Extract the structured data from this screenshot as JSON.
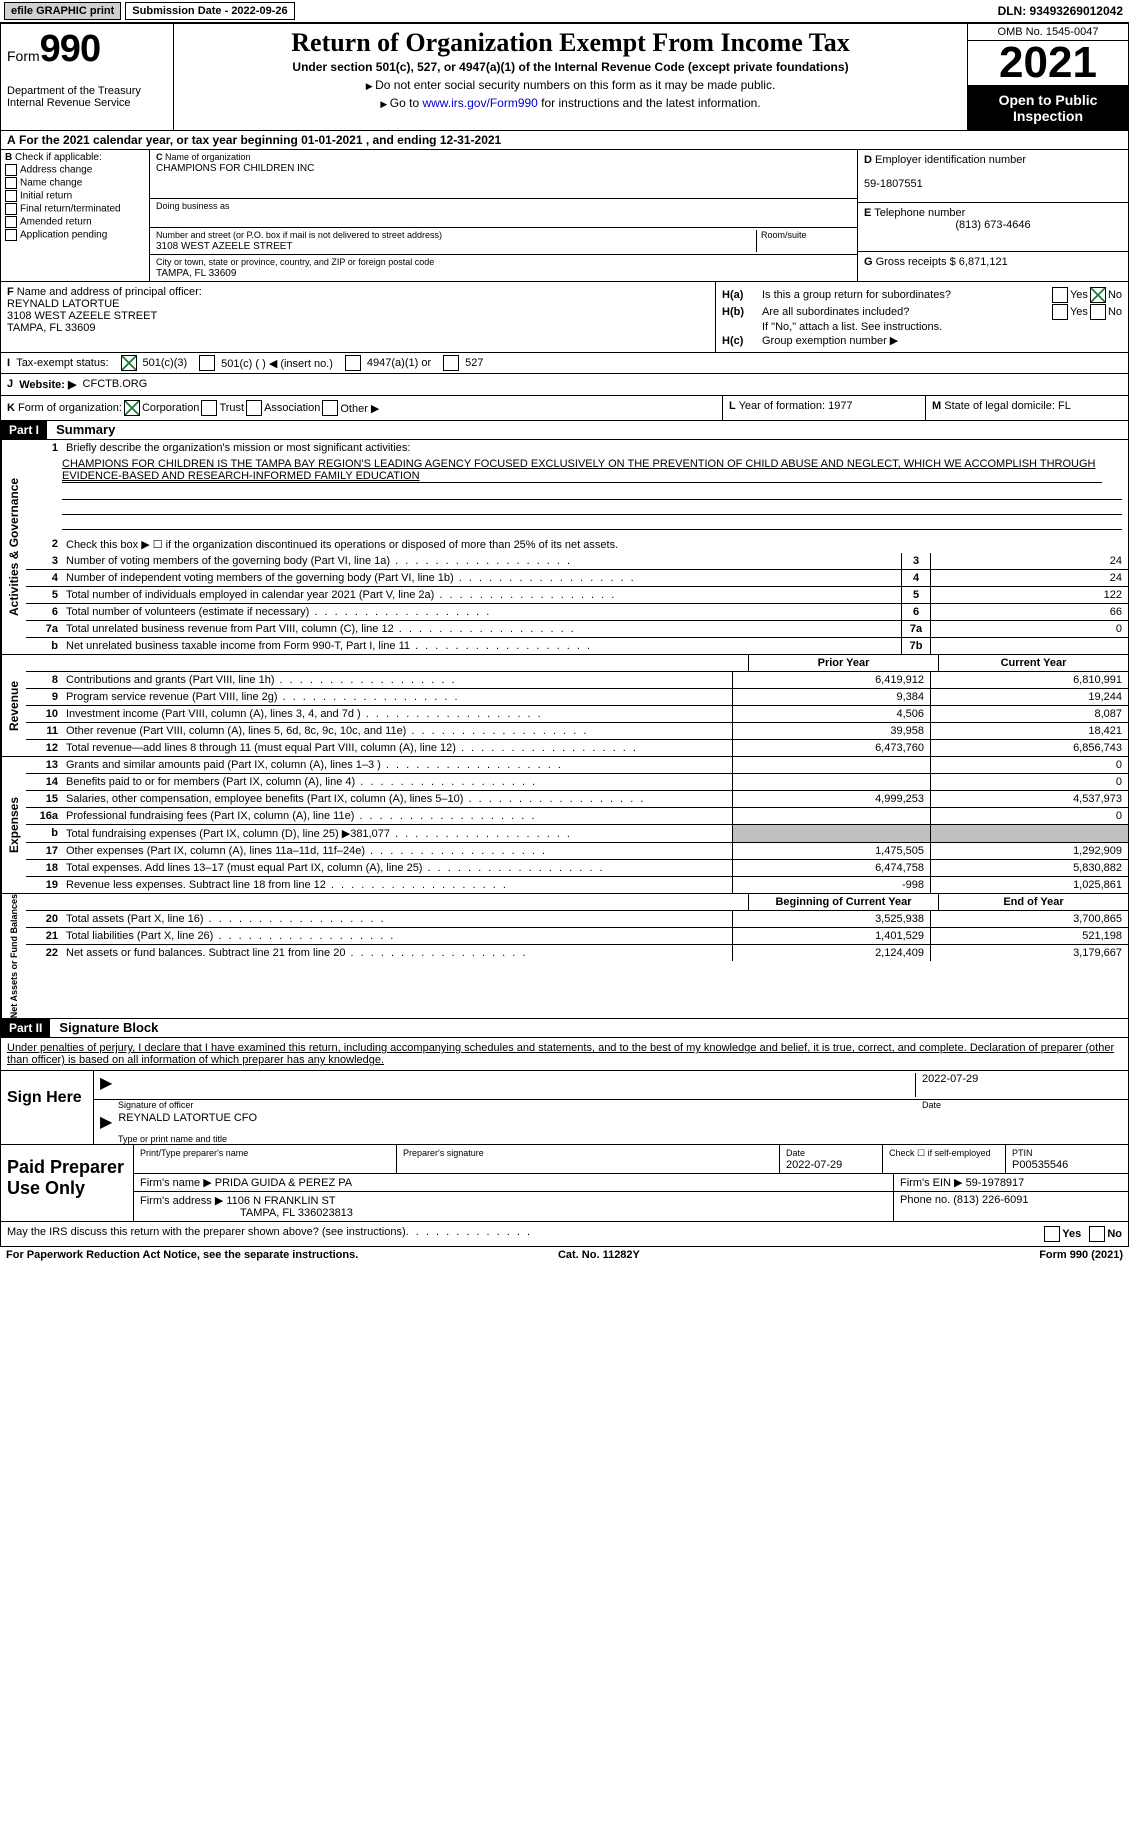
{
  "topbar": {
    "efile": "efile GRAPHIC print",
    "submission_label": "Submission Date - 2022-09-26",
    "dln": "DLN: 93493269012042"
  },
  "header": {
    "form_label": "Form",
    "form_num": "990",
    "dept": "Department of the Treasury",
    "irs": "Internal Revenue Service",
    "title": "Return of Organization Exempt From Income Tax",
    "sub1": "Under section 501(c), 527, or 4947(a)(1) of the Internal Revenue Code (except private foundations)",
    "sub2": "Do not enter social security numbers on this form as it may be made public.",
    "sub3_pre": "Go to ",
    "sub3_link": "www.irs.gov/Form990",
    "sub3_post": " for instructions and the latest information.",
    "omb": "OMB No. 1545-0047",
    "year": "2021",
    "open": "Open to Public Inspection"
  },
  "A": "For the 2021 calendar year, or tax year beginning 01-01-2021   , and ending 12-31-2021",
  "B": {
    "label": "Check if applicable:",
    "items": [
      "Address change",
      "Name change",
      "Initial return",
      "Final return/terminated",
      "Amended return",
      "Application pending"
    ],
    "letter": "B"
  },
  "C": {
    "name_label": "Name of organization",
    "name": "CHAMPIONS FOR CHILDREN INC",
    "dba_label": "Doing business as",
    "street_label": "Number and street (or P.O. box if mail is not delivered to street address)",
    "room_label": "Room/suite",
    "street": "3108 WEST AZEELE STREET",
    "city_label": "City or town, state or province, country, and ZIP or foreign postal code",
    "city": "TAMPA, FL  33609",
    "letter": "C"
  },
  "D": {
    "label": "Employer identification number",
    "val": "59-1807551",
    "letter": "D"
  },
  "E": {
    "label": "Telephone number",
    "val": "(813) 673-4646",
    "letter": "E"
  },
  "G": {
    "label": "Gross receipts $",
    "val": "6,871,121",
    "letter": "G"
  },
  "F": {
    "label": "Name and address of principal officer:",
    "name": "REYNALD LATORTUE",
    "addr1": "3108 WEST AZEELE STREET",
    "addr2": "TAMPA, FL  33609",
    "letter": "F"
  },
  "H": {
    "a": "Is this a group return for subordinates?",
    "b": "Are all subordinates included?",
    "b_note": "If \"No,\" attach a list. See instructions.",
    "c": "Group exemption number ▶",
    "yes": "Yes",
    "no": "No"
  },
  "I": {
    "label": "Tax-exempt status:",
    "opts": [
      "501(c)(3)",
      "501(c) (  ) ◀ (insert no.)",
      "4947(a)(1) or",
      "527"
    ]
  },
  "J": {
    "label": "Website: ▶",
    "val": "CFCTB.ORG"
  },
  "K": {
    "label": "Form of organization:",
    "opts": [
      "Corporation",
      "Trust",
      "Association",
      "Other ▶"
    ]
  },
  "L": {
    "label": "Year of formation:",
    "val": "1977"
  },
  "M": {
    "label": "State of legal domicile:",
    "val": "FL"
  },
  "part1": {
    "part": "Part I",
    "title": "Summary",
    "vtabs": [
      "Activities & Governance",
      "Revenue",
      "Expenses",
      "Net Assets or Fund Balances"
    ],
    "l1_label": "Briefly describe the organization's mission or most significant activities:",
    "l1_text": "CHAMPIONS FOR CHILDREN IS THE TAMPA BAY REGION'S LEADING AGENCY FOCUSED EXCLUSIVELY ON THE PREVENTION OF CHILD ABUSE AND NEGLECT, WHICH WE ACCOMPLISH THROUGH EVIDENCE-BASED AND RESEARCH-INFORMED FAMILY EDUCATION",
    "l2": "Check this box ▶ ☐ if the organization discontinued its operations or disposed of more than 25% of its net assets.",
    "lines_ag": [
      {
        "n": "3",
        "t": "Number of voting members of the governing body (Part VI, line 1a)",
        "box": "3",
        "v": "24"
      },
      {
        "n": "4",
        "t": "Number of independent voting members of the governing body (Part VI, line 1b)",
        "box": "4",
        "v": "24"
      },
      {
        "n": "5",
        "t": "Total number of individuals employed in calendar year 2021 (Part V, line 2a)",
        "box": "5",
        "v": "122"
      },
      {
        "n": "6",
        "t": "Total number of volunteers (estimate if necessary)",
        "box": "6",
        "v": "66"
      },
      {
        "n": "7a",
        "t": "Total unrelated business revenue from Part VIII, column (C), line 12",
        "box": "7a",
        "v": "0"
      },
      {
        "n": "b",
        "t": "Net unrelated business taxable income from Form 990-T, Part I, line 11",
        "box": "7b",
        "v": ""
      }
    ],
    "col_prior": "Prior Year",
    "col_current": "Current Year",
    "lines_rev": [
      {
        "n": "8",
        "t": "Contributions and grants (Part VIII, line 1h)",
        "p": "6,419,912",
        "c": "6,810,991"
      },
      {
        "n": "9",
        "t": "Program service revenue (Part VIII, line 2g)",
        "p": "9,384",
        "c": "19,244"
      },
      {
        "n": "10",
        "t": "Investment income (Part VIII, column (A), lines 3, 4, and 7d )",
        "p": "4,506",
        "c": "8,087"
      },
      {
        "n": "11",
        "t": "Other revenue (Part VIII, column (A), lines 5, 6d, 8c, 9c, 10c, and 11e)",
        "p": "39,958",
        "c": "18,421"
      },
      {
        "n": "12",
        "t": "Total revenue—add lines 8 through 11 (must equal Part VIII, column (A), line 12)",
        "p": "6,473,760",
        "c": "6,856,743"
      }
    ],
    "lines_exp": [
      {
        "n": "13",
        "t": "Grants and similar amounts paid (Part IX, column (A), lines 1–3 )",
        "p": "",
        "c": "0"
      },
      {
        "n": "14",
        "t": "Benefits paid to or for members (Part IX, column (A), line 4)",
        "p": "",
        "c": "0"
      },
      {
        "n": "15",
        "t": "Salaries, other compensation, employee benefits (Part IX, column (A), lines 5–10)",
        "p": "4,999,253",
        "c": "4,537,973"
      },
      {
        "n": "16a",
        "t": "Professional fundraising fees (Part IX, column (A), line 11e)",
        "p": "",
        "c": "0"
      },
      {
        "n": "b",
        "t": "Total fundraising expenses (Part IX, column (D), line 25) ▶381,077",
        "p": "grey",
        "c": "grey"
      },
      {
        "n": "17",
        "t": "Other expenses (Part IX, column (A), lines 11a–11d, 11f–24e)",
        "p": "1,475,505",
        "c": "1,292,909"
      },
      {
        "n": "18",
        "t": "Total expenses. Add lines 13–17 (must equal Part IX, column (A), line 25)",
        "p": "6,474,758",
        "c": "5,830,882"
      },
      {
        "n": "19",
        "t": "Revenue less expenses. Subtract line 18 from line 12",
        "p": "-998",
        "c": "1,025,861"
      }
    ],
    "col_begin": "Beginning of Current Year",
    "col_end": "End of Year",
    "lines_net": [
      {
        "n": "20",
        "t": "Total assets (Part X, line 16)",
        "p": "3,525,938",
        "c": "3,700,865"
      },
      {
        "n": "21",
        "t": "Total liabilities (Part X, line 26)",
        "p": "1,401,529",
        "c": "521,198"
      },
      {
        "n": "22",
        "t": "Net assets or fund balances. Subtract line 21 from line 20",
        "p": "2,124,409",
        "c": "3,179,667"
      }
    ]
  },
  "part2": {
    "part": "Part II",
    "title": "Signature Block",
    "declaration": "Under penalties of perjury, I declare that I have examined this return, including accompanying schedules and statements, and to the best of my knowledge and belief, it is true, correct, and complete. Declaration of preparer (other than officer) is based on all information of which preparer has any knowledge.",
    "sign_here": "Sign Here",
    "sig_officer": "Signature of officer",
    "sig_date": "2022-07-29",
    "date_label": "Date",
    "name_title": "REYNALD LATORTUE  CFO",
    "name_title_label": "Type or print name and title",
    "paid": "Paid Preparer Use Only",
    "prep_name_label": "Print/Type preparer's name",
    "prep_sig_label": "Preparer's signature",
    "prep_date_label": "Date",
    "prep_date": "2022-07-29",
    "prep_check_label": "Check ☐ if self-employed",
    "ptin_label": "PTIN",
    "ptin": "P00535546",
    "firm_name_label": "Firm's name    ▶",
    "firm_name": "PRIDA GUIDA & PEREZ PA",
    "firm_ein_label": "Firm's EIN ▶",
    "firm_ein": "59-1978917",
    "firm_addr_label": "Firm's address ▶",
    "firm_addr1": "1106 N FRANKLIN ST",
    "firm_addr2": "TAMPA, FL  336023813",
    "phone_label": "Phone no.",
    "phone": "(813) 226-6091",
    "discuss": "May the IRS discuss this return with the preparer shown above? (see instructions)"
  },
  "footer": {
    "pra": "For Paperwork Reduction Act Notice, see the separate instructions.",
    "cat": "Cat. No. 11282Y",
    "form": "Form 990 (2021)"
  }
}
